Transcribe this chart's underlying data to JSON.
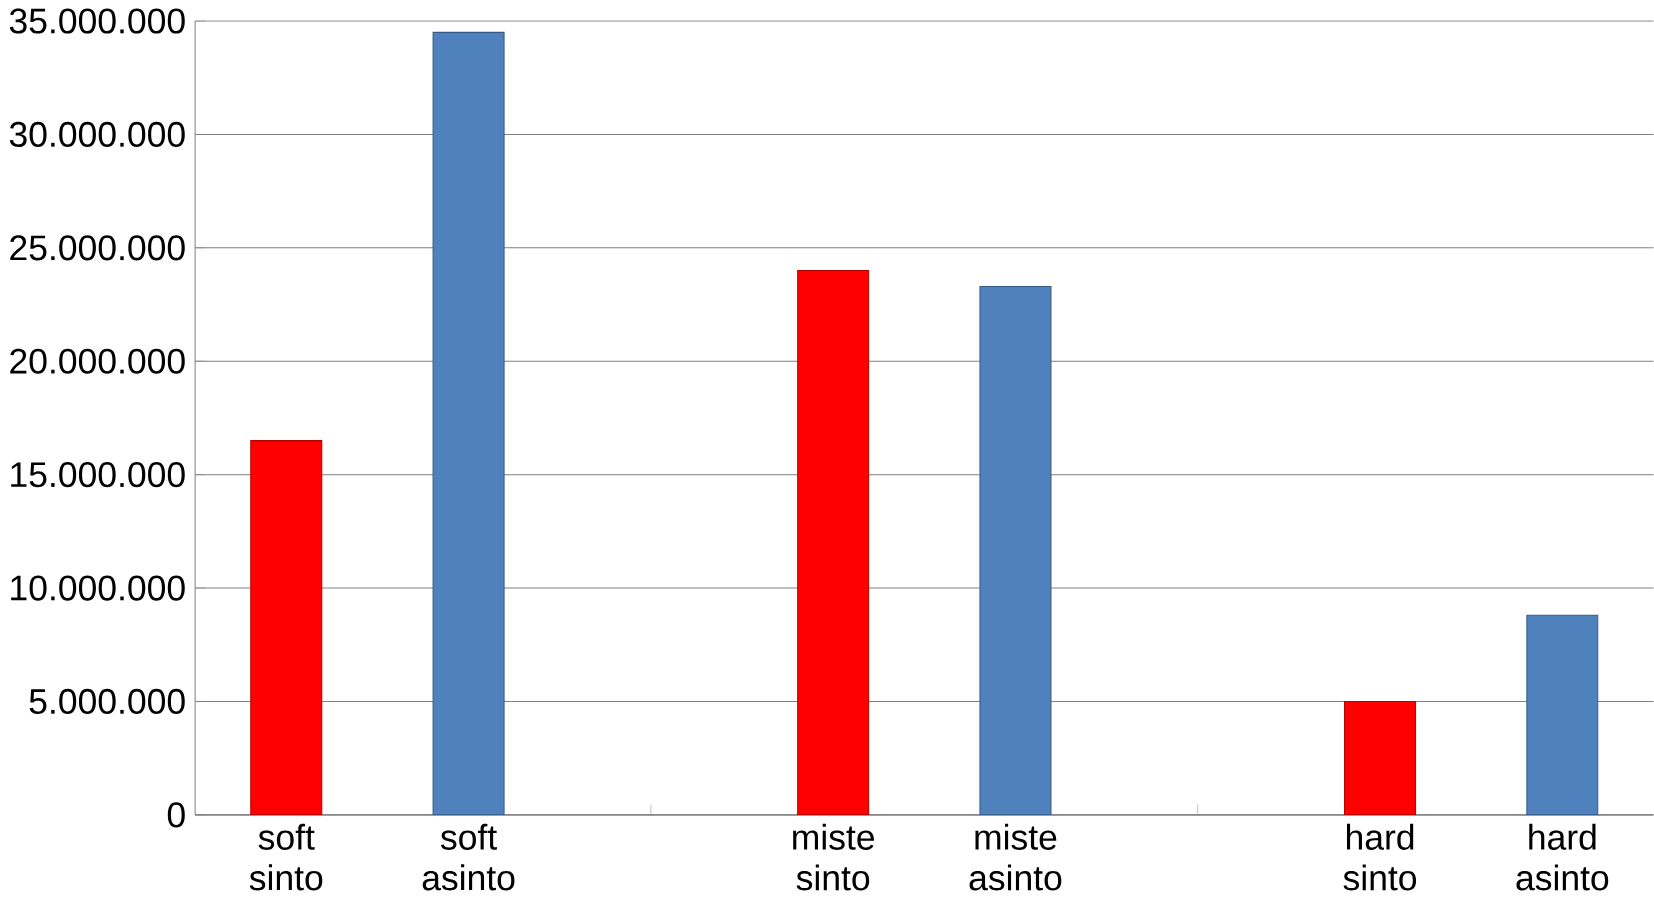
{
  "chart_data": {
    "type": "bar",
    "categories": [
      "soft sinto",
      "soft asinto",
      null,
      "miste sinto",
      "miste asinto",
      null,
      "hard sinto",
      "hard asinto"
    ],
    "values": [
      16500000,
      34500000,
      null,
      24000000,
      23300000,
      null,
      5000000,
      8800000
    ],
    "colors": [
      "#ff0000",
      "#4f81bd",
      null,
      "#ff0000",
      "#4f81bd",
      null,
      "#ff0000",
      "#4f81bd"
    ],
    "ylim": [
      0,
      35000000
    ],
    "yticks": [
      {
        "value": 0,
        "label": "0"
      },
      {
        "value": 5000000,
        "label": "5.000.000"
      },
      {
        "value": 10000000,
        "label": "10.000.000"
      },
      {
        "value": 15000000,
        "label": "15.000.000"
      },
      {
        "value": 20000000,
        "label": "20.000.000"
      },
      {
        "value": 25000000,
        "label": "25.000.000"
      },
      {
        "value": 30000000,
        "label": "30.000.000"
      },
      {
        "value": 35000000,
        "label": "35.000.000"
      }
    ],
    "grid": "y"
  }
}
